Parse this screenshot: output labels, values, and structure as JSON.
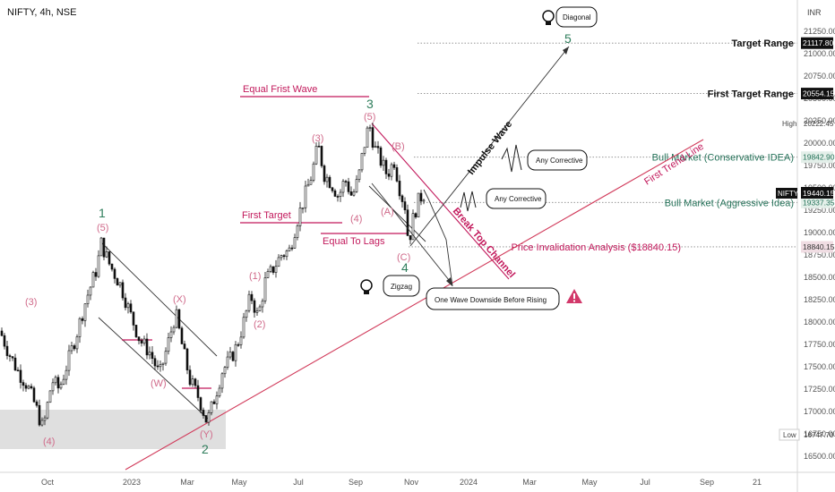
{
  "chart_data": {
    "type": "candlestick",
    "title": "NIFTY, 4h, NSE",
    "currency": "INR",
    "y_axis": {
      "ticks": [
        "21250.00",
        "21000.00",
        "20750.00",
        "20500.00",
        "20250.00",
        "20000.00",
        "19750.00",
        "19500.00",
        "19250.00",
        "19000.00",
        "18750.00",
        "18500.00",
        "18250.00",
        "18000.00",
        "17750.00",
        "17500.00",
        "17250.00",
        "17000.00",
        "16750.00",
        "16500.00"
      ],
      "range": [
        16400,
        21500
      ]
    },
    "x_axis": {
      "ticks": [
        "Oct",
        "2023",
        "Mar",
        "May",
        "Jul",
        "Sep",
        "Nov",
        "2024",
        "Mar",
        "May",
        "Jul",
        "Sep",
        "21"
      ]
    },
    "price_path": [
      [
        0,
        17900
      ],
      [
        10,
        17650
      ],
      [
        20,
        17450
      ],
      [
        30,
        17300
      ],
      [
        40,
        17050
      ],
      [
        48,
        16800
      ],
      [
        58,
        17350
      ],
      [
        66,
        17250
      ],
      [
        74,
        17500
      ],
      [
        85,
        17850
      ],
      [
        96,
        18250
      ],
      [
        108,
        18600
      ],
      [
        113,
        18880
      ],
      [
        122,
        18650
      ],
      [
        135,
        18400
      ],
      [
        145,
        18100
      ],
      [
        156,
        17800
      ],
      [
        168,
        17650
      ],
      [
        178,
        17400
      ],
      [
        186,
        17700
      ],
      [
        196,
        18100
      ],
      [
        203,
        17750
      ],
      [
        212,
        17350
      ],
      [
        222,
        17150
      ],
      [
        231,
        16880
      ],
      [
        238,
        17100
      ],
      [
        248,
        17450
      ],
      [
        258,
        17600
      ],
      [
        265,
        17750
      ],
      [
        272,
        18000
      ],
      [
        280,
        18300
      ],
      [
        288,
        18050
      ],
      [
        296,
        18450
      ],
      [
        305,
        18600
      ],
      [
        314,
        18750
      ],
      [
        323,
        18800
      ],
      [
        332,
        19150
      ],
      [
        340,
        19400
      ],
      [
        348,
        19650
      ],
      [
        355,
        19980
      ],
      [
        362,
        19650
      ],
      [
        370,
        19550
      ],
      [
        378,
        19400
      ],
      [
        385,
        19600
      ],
      [
        393,
        19400
      ],
      [
        400,
        19600
      ],
      [
        405,
        19900
      ],
      [
        412,
        20220
      ],
      [
        418,
        19950
      ],
      [
        425,
        19800
      ],
      [
        432,
        19650
      ],
      [
        440,
        19800
      ],
      [
        447,
        19450
      ],
      [
        452,
        19300
      ],
      [
        456,
        18880
      ],
      [
        462,
        19200
      ],
      [
        468,
        19380
      ],
      [
        474,
        19440
      ]
    ],
    "price_levels": [
      {
        "label": "Target Range",
        "value": "21117.80",
        "price": 21117.8
      },
      {
        "label": "First Target Range",
        "value": "20554.15",
        "price": 20554.15
      },
      {
        "label": "Bull Market (Conservative IDEA)",
        "value": "19842.90",
        "price": 19842.9
      },
      {
        "label": "Bull Market (Aggressive Idea)",
        "value": "19337.35",
        "price": 19337.35
      },
      {
        "label": "Price Invalidation Analysis ($18840.15)",
        "value": "18840.15",
        "price": 18840.15
      }
    ],
    "current": {
      "label": "NIFTY",
      "value": "19440.15"
    },
    "high": {
      "label": "High",
      "value": "20222.45"
    },
    "low": {
      "label": "Low",
      "value": "16747.70"
    },
    "wave_labels": {
      "pink": [
        "(3)",
        "(4)",
        "(5)",
        "(X)",
        "(W)",
        "(Y)",
        "(1)",
        "(2)",
        "(3)",
        "(4)",
        "(5)",
        "(B)",
        "(A)",
        "(C)"
      ],
      "green": [
        "1",
        "2",
        "3",
        "4",
        "5"
      ]
    },
    "annotations": {
      "equal_first_wave": "Equal Frist Wave",
      "first_target": "First Target",
      "equal_to_lags": "Equal To Lags",
      "impulse_wave": "Impulse Wave",
      "break_top_channel": "Break Top Channel",
      "first_trendline": "First Trend Line",
      "diagonal": "Diagonal",
      "zigzag": "Zigzag",
      "any_corrective_1": "Any Corrective",
      "any_corrective_2": "Any Corrective",
      "one_wave": "One Wave Downside Before Rising"
    }
  }
}
